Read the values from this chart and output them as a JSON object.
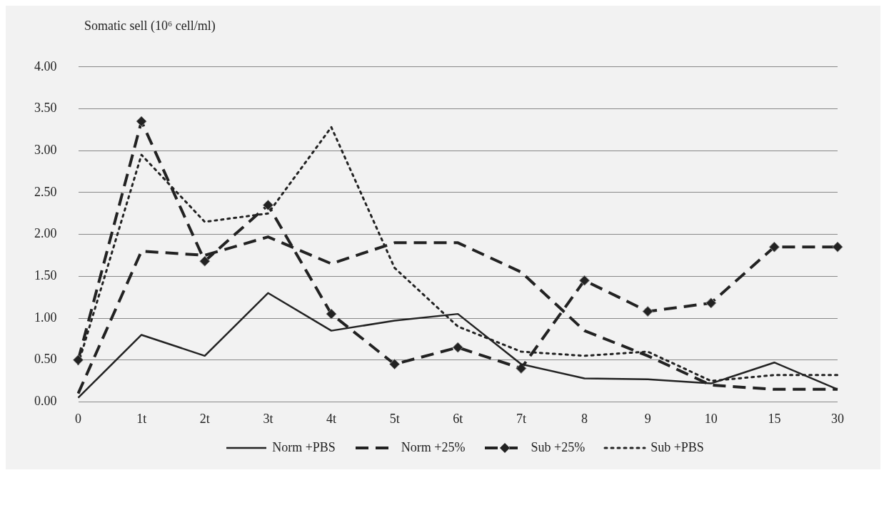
{
  "chart_data": {
    "type": "line",
    "ylabel": "Somatic sell  (10⁶ cell/ml)",
    "categories": [
      "0",
      "1t",
      "2t",
      "3t",
      "4t",
      "5t",
      "6t",
      "7t",
      "8",
      "9",
      "10",
      "15",
      "30"
    ],
    "series": [
      {
        "name": "Norm +PBS",
        "color": "#222222",
        "line_style": "solid",
        "marker": "none",
        "values": [
          0.05,
          0.8,
          0.55,
          1.3,
          0.85,
          0.97,
          1.05,
          0.45,
          0.28,
          0.27,
          0.22,
          0.47,
          0.15
        ]
      },
      {
        "name": "Norm +25%",
        "color": "#222222",
        "line_style": "dashed",
        "marker": "none",
        "values": [
          0.1,
          1.8,
          1.75,
          1.97,
          1.65,
          1.9,
          1.9,
          1.55,
          0.85,
          0.55,
          0.2,
          0.15,
          0.15
        ]
      },
      {
        "name": "Sub +25%",
        "color": "#222222",
        "line_style": "dashed",
        "marker": "diamond",
        "values": [
          0.5,
          3.35,
          1.68,
          2.35,
          1.05,
          0.45,
          0.65,
          0.4,
          1.45,
          1.08,
          1.18,
          1.85,
          1.85
        ]
      },
      {
        "name": "Sub +PBS",
        "color": "#222222",
        "line_style": "dotted",
        "marker": "none",
        "values": [
          0.45,
          2.95,
          2.15,
          2.25,
          3.28,
          1.6,
          0.9,
          0.6,
          0.55,
          0.6,
          0.25,
          0.32,
          0.32
        ]
      }
    ],
    "ylim": [
      0,
      4
    ],
    "yticks": [
      {
        "value": 0,
        "label": "0.00"
      },
      {
        "value": 0.5,
        "label": "0.50"
      },
      {
        "value": 1,
        "label": "1.00"
      },
      {
        "value": 1.5,
        "label": "1.50"
      },
      {
        "value": 2,
        "label": "2.00"
      },
      {
        "value": 2.5,
        "label": "2.50"
      },
      {
        "value": 3,
        "label": "3.00"
      },
      {
        "value": 3.5,
        "label": "3.50"
      },
      {
        "value": 4,
        "label": "4.00"
      }
    ],
    "grid": "y",
    "legend": "bottom"
  }
}
